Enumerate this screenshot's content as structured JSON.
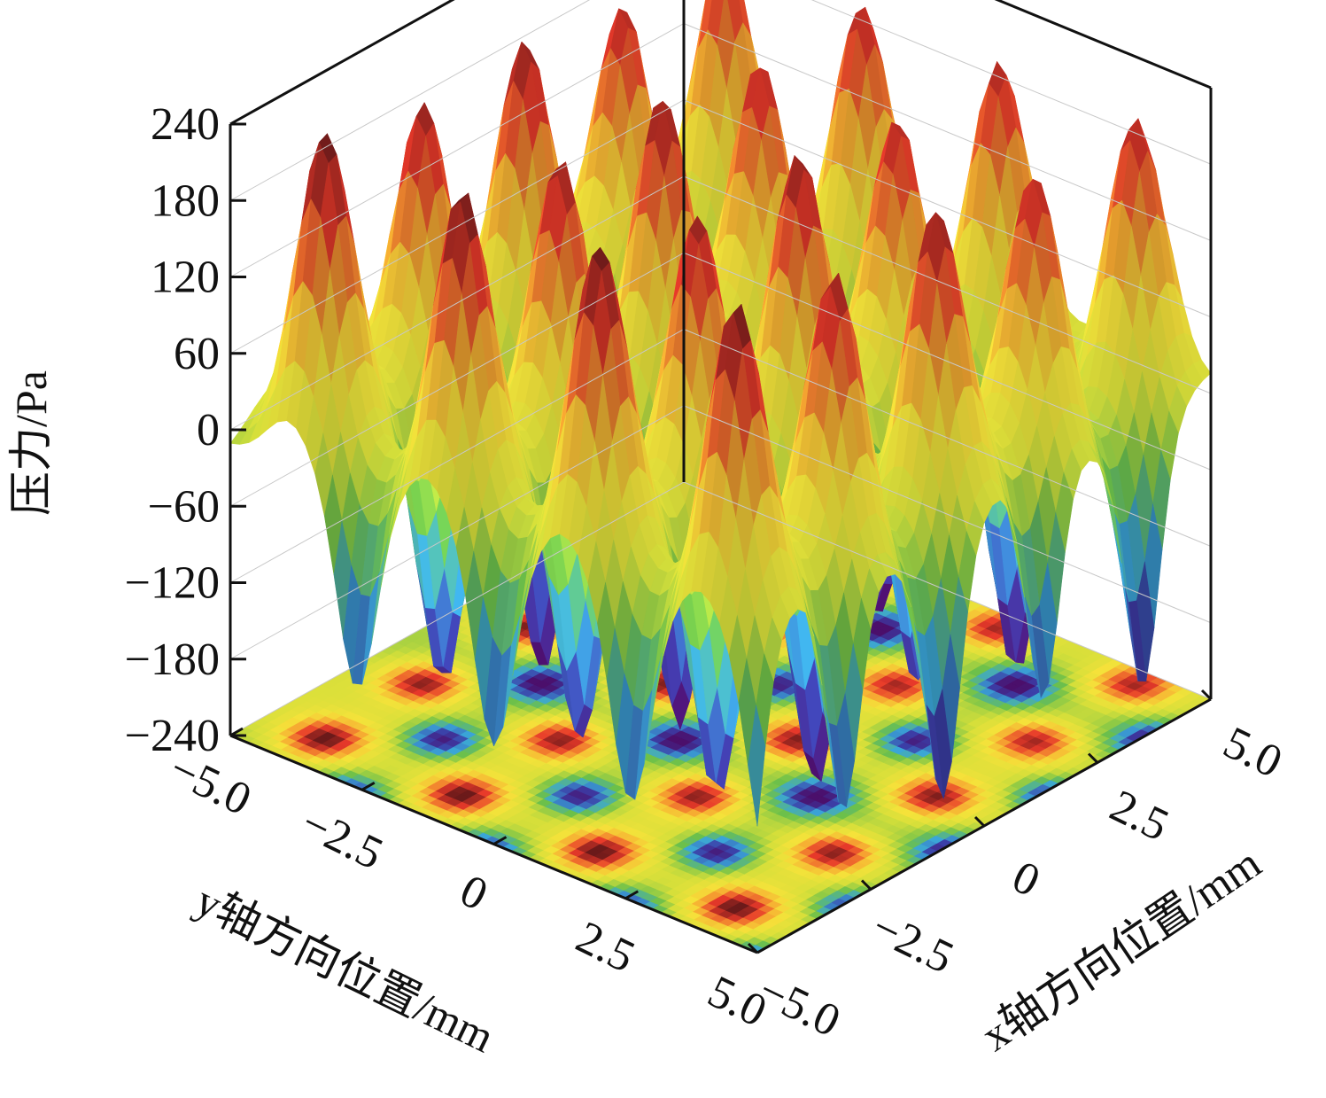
{
  "chart_data": {
    "type": "surface3d",
    "title": "",
    "zlabel": "压力/Pa",
    "ylabel": "y轴方向位置/mm",
    "xlabel": "x轴方向位置/mm",
    "zlim": [
      -240,
      240
    ],
    "zticks": [
      "240",
      "180",
      "120",
      "60",
      "0",
      "−60",
      "−120",
      "−180",
      "−240"
    ],
    "xlim": [
      -5.0,
      5.0
    ],
    "ylim": [
      -5.0,
      5.0
    ],
    "xticks": [
      "−5.0",
      "−2.5",
      "0",
      "2.5",
      "5.0"
    ],
    "yticks": [
      "−5.0",
      "−2.5",
      "0",
      "2.5",
      "5.0"
    ],
    "grid": true,
    "projected_contour_on_floor": true,
    "colormap": [
      "#4b0f6b",
      "#3b3fa8",
      "#3aa6d8",
      "#6cc04a",
      "#d6df3a",
      "#f5e23a",
      "#f6a531",
      "#e8392a",
      "#6b1a1a"
    ],
    "peak_value_approx": 230,
    "trough_value_approx": -215,
    "pattern": "periodic array of pressure peaks and troughs, alternating along x"
  }
}
